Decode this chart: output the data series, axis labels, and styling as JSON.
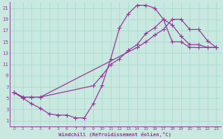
{
  "xlabel": "Windchill (Refroidissement éolien,°C)",
  "bg_color": "#c8e8e0",
  "line_color": "#993399",
  "grid_color": "#aaddcc",
  "xlim": [
    -0.5,
    23.5
  ],
  "ylim": [
    0,
    22
  ],
  "xtick_labels": [
    "0",
    "1",
    "2",
    "3",
    "4",
    "5",
    "6",
    "7",
    "8",
    "9",
    "10",
    "11",
    "12",
    "13",
    "14",
    "15",
    "16",
    "17",
    "18",
    "19",
    "20",
    "21",
    "22",
    "23"
  ],
  "xtick_vals": [
    0,
    1,
    2,
    3,
    4,
    5,
    6,
    7,
    8,
    9,
    10,
    11,
    12,
    13,
    14,
    15,
    16,
    17,
    18,
    19,
    20,
    21,
    22,
    23
  ],
  "ytick_labels": [
    "1",
    "3",
    "5",
    "7",
    "9",
    "11",
    "13",
    "15",
    "17",
    "19",
    "21"
  ],
  "ytick_vals": [
    1,
    3,
    5,
    7,
    9,
    11,
    13,
    15,
    17,
    19,
    21
  ],
  "series1_x": [
    0,
    1,
    2,
    3,
    4,
    5,
    6,
    7,
    8,
    9,
    10,
    11,
    12,
    13,
    14,
    15,
    16,
    17,
    18,
    19,
    20,
    21,
    22,
    23
  ],
  "series1_y": [
    6,
    5,
    4,
    3.2,
    2.2,
    2.0,
    2.0,
    1.5,
    1.5,
    4.0,
    7.2,
    12.0,
    17.5,
    20.0,
    21.5,
    21.5,
    21.0,
    19.0,
    15.0,
    15.0,
    14.0,
    14.0,
    14.0,
    14.0
  ],
  "series2_x": [
    0,
    1,
    2,
    3,
    14,
    15,
    16,
    17,
    18,
    19,
    20,
    21,
    22,
    23
  ],
  "series2_y": [
    6,
    5.2,
    5.2,
    5.2,
    14.0,
    15.0,
    16.2,
    17.2,
    19.0,
    19.0,
    17.2,
    17.2,
    15.2,
    14.0
  ],
  "series3_x": [
    0,
    1,
    2,
    3,
    9,
    10,
    11,
    12,
    13,
    14,
    15,
    16,
    17,
    18,
    19,
    20,
    21,
    22,
    23
  ],
  "series3_y": [
    6,
    5.2,
    5.2,
    5.2,
    7.2,
    9.0,
    11.0,
    12.0,
    13.5,
    14.5,
    16.5,
    17.5,
    19.0,
    18.0,
    16.0,
    14.5,
    14.5,
    14.0,
    14.0
  ]
}
